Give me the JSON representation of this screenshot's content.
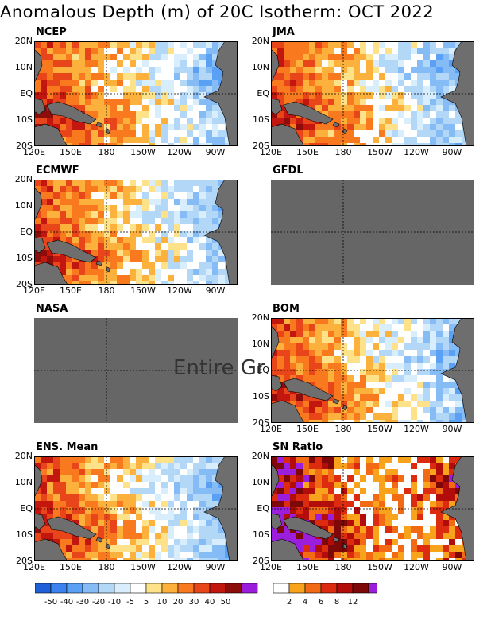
{
  "title": "Anomalous Depth (m) of 20C Isotherm: OCT 2022",
  "lat_ticks": [
    "20N",
    "10N",
    "EQ",
    "10S",
    "20S"
  ],
  "lon_ticks": [
    "120E",
    "150E",
    "180",
    "150W",
    "120W",
    "90W"
  ],
  "panels": [
    {
      "id": "ncep",
      "label": "NCEP",
      "status": "data"
    },
    {
      "id": "jma",
      "label": "JMA",
      "status": "data"
    },
    {
      "id": "ecmwf",
      "label": "ECMWF",
      "status": "data"
    },
    {
      "id": "gfdl",
      "label": "GFDL",
      "status": "missing"
    },
    {
      "id": "nasa",
      "label": "NASA",
      "status": "missing"
    },
    {
      "id": "bom",
      "label": "BOM",
      "status": "data"
    },
    {
      "id": "ens",
      "label": "ENS. Mean",
      "status": "data"
    },
    {
      "id": "sn",
      "label": "SN Ratio",
      "status": "data"
    }
  ],
  "overlay_text": "Entire Gr",
  "anomaly_colorbar": {
    "colors": [
      "#1f60d8",
      "#3a82f0",
      "#5aa0f5",
      "#86bcf5",
      "#b3d7f7",
      "#d9eefc",
      "#ffffff",
      "#fde28a",
      "#fbb13b",
      "#f97a1e",
      "#e8461a",
      "#c3160f",
      "#8c0d0a",
      "#9b1ddc"
    ],
    "labels": [
      "-50",
      "-40",
      "-30",
      "-20",
      "-10",
      "-5",
      "5",
      "10",
      "20",
      "30",
      "40",
      "50"
    ]
  },
  "sn_colorbar": {
    "colors": [
      "#ffffff",
      "#f9a21c",
      "#f26a14",
      "#dd2b10",
      "#b20d0a",
      "#7e0708",
      "#9a1edc"
    ],
    "labels": [
      "2",
      "4",
      "6",
      "8",
      "12"
    ]
  },
  "colors": {
    "land": "#6e6e6e",
    "missing": "#666666"
  }
}
